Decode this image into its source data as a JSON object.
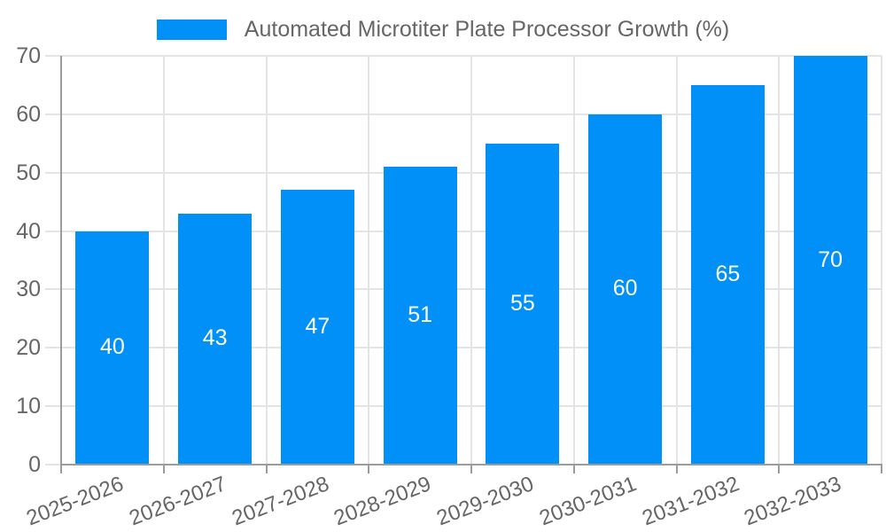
{
  "legend": {
    "label": "Automated Microtiter Plate Processor Growth (%)",
    "position": "top"
  },
  "chart_data": {
    "type": "bar",
    "title": "Automated Microtiter Plate Processor Growth (%)",
    "categories": [
      "2025-2026",
      "2026-2027",
      "2027-2028",
      "2028-2029",
      "2029-2030",
      "2030-2031",
      "2031-2032",
      "2032-2033"
    ],
    "values": [
      40,
      43,
      47,
      51,
      55,
      60,
      65,
      70
    ],
    "series_name": "Automated Microtiter Plate Processor Growth (%)",
    "xlabel": "",
    "ylabel": "",
    "ylim": [
      0,
      70
    ],
    "yticks": [
      0,
      10,
      20,
      30,
      40,
      50,
      60,
      70
    ],
    "grid": true,
    "legend_position": "top",
    "value_labels_shown": true,
    "colors": {
      "bar": "#0090F8",
      "value_label": "#FFFFFF",
      "axis_text": "#666666",
      "gridline": "#E4E4E4",
      "axis_line": "#9C9C9C",
      "background": "#FFFFFF"
    }
  }
}
